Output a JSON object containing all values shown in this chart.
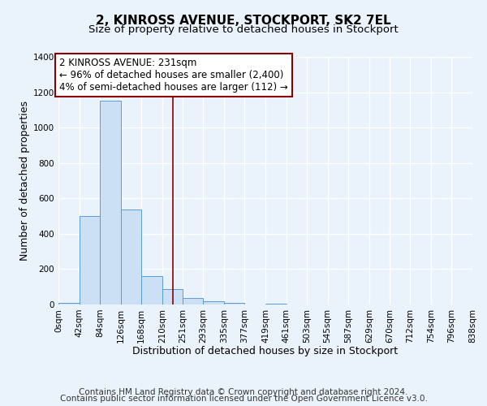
{
  "title": "2, KINROSS AVENUE, STOCKPORT, SK2 7EL",
  "subtitle": "Size of property relative to detached houses in Stockport",
  "xlabel": "Distribution of detached houses by size in Stockport",
  "ylabel": "Number of detached properties",
  "bin_edges": [
    0,
    42,
    84,
    126,
    168,
    210,
    251,
    293,
    335,
    377,
    419,
    461,
    503,
    545,
    587,
    629,
    670,
    712,
    754,
    796,
    838
  ],
  "bar_heights": [
    10,
    500,
    1150,
    535,
    160,
    85,
    35,
    20,
    10,
    0,
    5,
    0,
    0,
    0,
    0,
    0,
    0,
    0,
    0,
    0
  ],
  "bar_color": "#cce0f5",
  "bar_edge_color": "#5b9bd5",
  "vline_x": 231,
  "vline_color": "#8b0000",
  "annotation_line1": "2 KINROSS AVENUE: 231sqm",
  "annotation_line2": "← 96% of detached houses are smaller (2,400)",
  "annotation_line3": "4% of semi-detached houses are larger (112) →",
  "annotation_box_color": "#ffffff",
  "annotation_box_edge": "#8b0000",
  "ylim": [
    0,
    1400
  ],
  "yticks": [
    0,
    200,
    400,
    600,
    800,
    1000,
    1200,
    1400
  ],
  "xtick_labels": [
    "0sqm",
    "42sqm",
    "84sqm",
    "126sqm",
    "168sqm",
    "210sqm",
    "251sqm",
    "293sqm",
    "335sqm",
    "377sqm",
    "419sqm",
    "461sqm",
    "503sqm",
    "545sqm",
    "587sqm",
    "629sqm",
    "670sqm",
    "712sqm",
    "754sqm",
    "796sqm",
    "838sqm"
  ],
  "footer_line1": "Contains HM Land Registry data © Crown copyright and database right 2024.",
  "footer_line2": "Contains public sector information licensed under the Open Government Licence v3.0.",
  "background_color": "#eaf2fb",
  "plot_background": "#eaf2fb",
  "grid_color": "#ffffff",
  "title_fontsize": 11,
  "subtitle_fontsize": 9.5,
  "axis_label_fontsize": 9,
  "tick_fontsize": 7.5,
  "footer_fontsize": 7.5,
  "annotation_fontsize": 8.5
}
